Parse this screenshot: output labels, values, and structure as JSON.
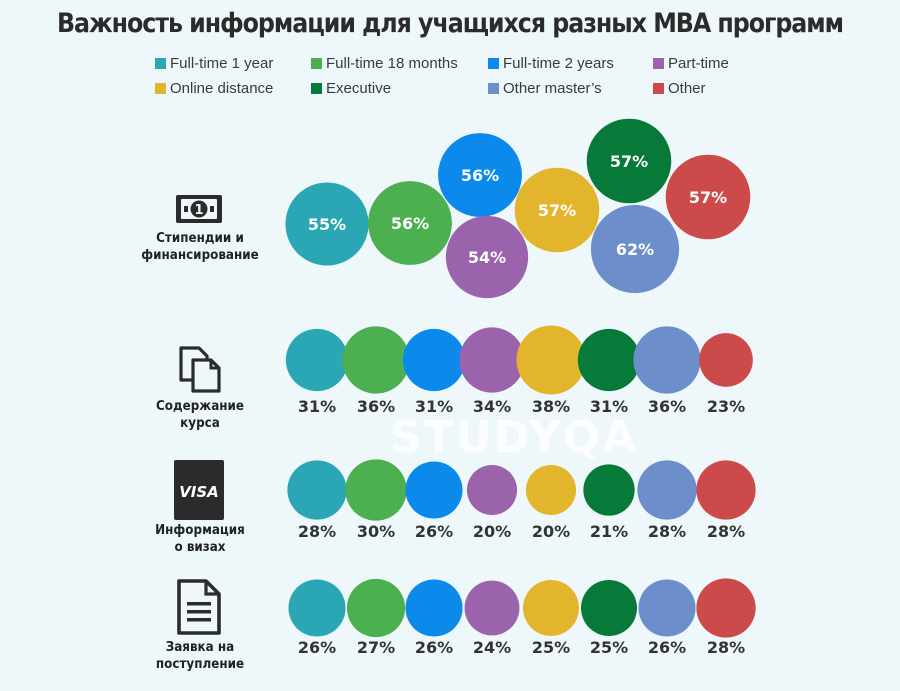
{
  "chart_data": {
    "type": "bubble",
    "title": "Важность информации для учащихся разных MBA программ",
    "series": [
      {
        "name": "Full-time 1 year",
        "color": "#2aa6b5"
      },
      {
        "name": "Full-time 18 months",
        "color": "#4caf50"
      },
      {
        "name": "Full-time 2 years",
        "color": "#0b8aeb"
      },
      {
        "name": "Part-time",
        "color": "#9c63ad"
      },
      {
        "name": "Online distance",
        "color": "#e3b52c"
      },
      {
        "name": "Executive",
        "color": "#077a3a"
      },
      {
        "name": "Other master’s",
        "color": "#6c8fcb"
      },
      {
        "name": "Other",
        "color": "#cd4a4a"
      }
    ],
    "categories": [
      {
        "label": "Стипендии и финансирование",
        "icon": "money-icon",
        "values": [
          55,
          56,
          56,
          54,
          57,
          57,
          62,
          57
        ],
        "labels": [
          "55%",
          "56%",
          "56%",
          "54%",
          "57%",
          "57%",
          "62%",
          "57%"
        ]
      },
      {
        "label": "Содержание курса",
        "icon": "documents-icon",
        "values": [
          31,
          36,
          31,
          34,
          38,
          31,
          36,
          23
        ],
        "labels": [
          "31%",
          "36%",
          "31%",
          "34%",
          "38%",
          "31%",
          "36%",
          "23%"
        ]
      },
      {
        "label": "Информация о визах",
        "icon": "visa-card-icon",
        "values": [
          28,
          30,
          26,
          20,
          20,
          21,
          28,
          28
        ],
        "labels": [
          "28%",
          "30%",
          "26%",
          "20%",
          "20%",
          "21%",
          "28%",
          "28%"
        ]
      },
      {
        "label": "Заявка на поступление",
        "icon": "application-document-icon",
        "values": [
          26,
          27,
          26,
          24,
          25,
          25,
          26,
          28
        ],
        "labels": [
          "26%",
          "27%",
          "26%",
          "24%",
          "25%",
          "25%",
          "26%",
          "28%"
        ]
      }
    ],
    "unit": "%",
    "legend_position": "top"
  },
  "icons": {
    "money_glyph": "1",
    "visa_text": "VISA"
  },
  "watermark": "STUDYQA"
}
